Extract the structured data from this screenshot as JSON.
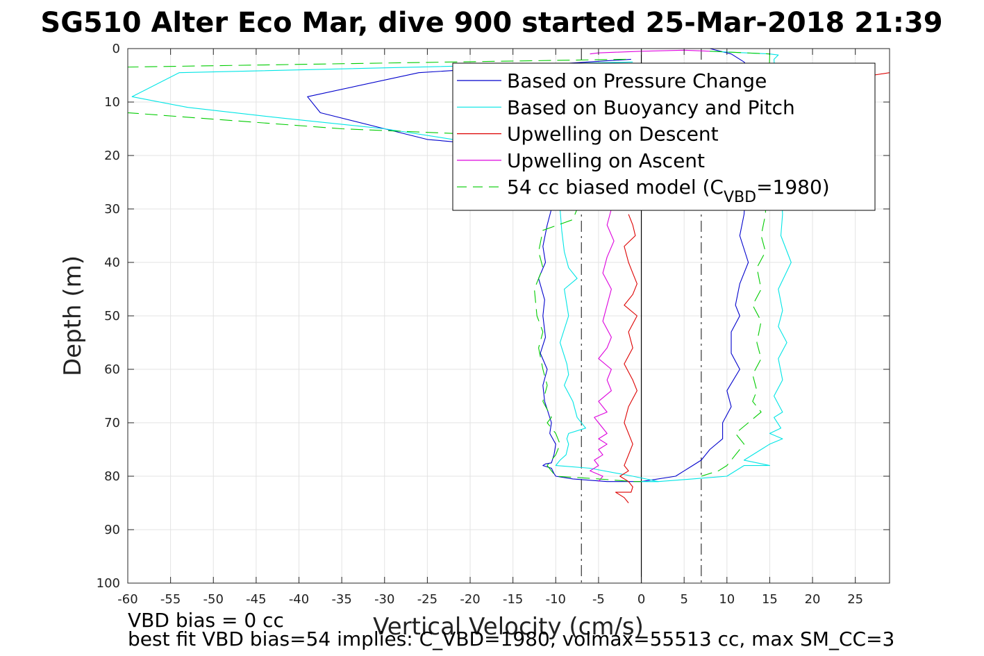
{
  "chart_data": {
    "type": "line",
    "title": "SG510 Alter Eco Mar, dive 900 started 25-Mar-2018 21:39",
    "xlabel": "Vertical Velocity (cm/s)",
    "ylabel": "Depth (m)",
    "xlim": [
      -60,
      29
    ],
    "ylim": [
      0,
      100
    ],
    "y_reversed": true,
    "grid": true,
    "xticks": [
      -60,
      -55,
      -50,
      -45,
      -40,
      -35,
      -30,
      -25,
      -20,
      -15,
      -10,
      -5,
      0,
      5,
      10,
      15,
      20,
      25
    ],
    "yticks": [
      0,
      10,
      20,
      30,
      40,
      50,
      60,
      70,
      80,
      90,
      100
    ],
    "legend_position": "top-right",
    "legend": [
      {
        "label": "Based on Pressure Change",
        "color": "#0000cc",
        "dash": "solid"
      },
      {
        "label": "Based on Buoyancy and Pitch",
        "color": "#00e5e5",
        "dash": "solid"
      },
      {
        "label": "Upwelling on Descent",
        "color": "#dd0000",
        "dash": "solid"
      },
      {
        "label": "Upwelling on Ascent",
        "color": "#dd00dd",
        "dash": "solid"
      },
      {
        "label_main": "54 cc biased model (C",
        "label_sub": "VBD",
        "label_tail": "=1980)",
        "color": "#00cc00",
        "dash": "dashed"
      }
    ],
    "reference_lines": [
      {
        "x": 0,
        "style": "solid",
        "color": "#000000"
      },
      {
        "x": -7,
        "style": "dashdot",
        "color": "#333333"
      },
      {
        "x": 7,
        "style": "dashdot",
        "color": "#333333"
      }
    ],
    "series": [
      {
        "name": "Based on Pressure Change",
        "color": "#0000cc",
        "dash": "solid",
        "segments": [
          {
            "x": [
              -1.2,
              -26,
              -39,
              -37.5,
              -25,
              -18,
              -10.5,
              -11,
              -11.5,
              -11.2,
              -12,
              -11.3,
              -11.5,
              -11.2,
              -11.8,
              -11,
              -11.5,
              -11.3,
              -10.5,
              -10.7,
              -10,
              -10.2,
              -10.5,
              -11.2,
              -11.5,
              -10.5,
              -10.2,
              -10,
              -8,
              -4,
              -1,
              0
            ],
            "y": [
              2,
              4.5,
              9,
              12,
              17,
              18,
              30,
              33,
              37,
              40,
              43,
              47,
              50,
              54,
              57,
              60,
              63,
              66,
              70,
              72,
              74,
              76,
              77.5,
              77.7,
              78,
              78.5,
              79.5,
              80,
              80.5,
              81,
              81,
              81
            ]
          },
          {
            "x": [
              8,
              10.5,
              12,
              13,
              12,
              11.5,
              12.5,
              11.5,
              11,
              11.5,
              10.5,
              10.5,
              11.5,
              10,
              10.5,
              9.5,
              9.5,
              8,
              7,
              6,
              5,
              4,
              0
            ],
            "y": [
              0,
              1,
              2.5,
              4.5,
              31,
              35,
              40,
              44,
              48,
              50,
              53,
              57,
              60,
              64,
              67,
              70,
              73,
              75,
              77,
              78,
              79,
              80,
              81
            ]
          }
        ]
      },
      {
        "name": "Based on Buoyancy and Pitch",
        "color": "#00e5e5",
        "dash": "solid",
        "segments": [
          {
            "x": [
              -1,
              -54,
              -59.5,
              -53,
              -42,
              -30,
              -22,
              -9.5,
              -9.3,
              -9,
              -8.5,
              -7.5,
              -9,
              -8.5,
              -9.5,
              -8.7,
              -8.5,
              -9,
              -8,
              -7.5,
              -6.5,
              -8.5,
              -8.7,
              -8.5,
              -8.8,
              -9.5,
              -10,
              -6,
              -1,
              2,
              0
            ],
            "y": [
              2.5,
              4.5,
              9,
              11,
              13,
              15,
              17,
              30,
              34,
              38,
              41,
              43,
              45,
              50,
              55,
              59,
              61,
              63,
              66,
              69,
              71,
              72,
              73,
              74,
              76,
              77,
              78,
              78.5,
              80,
              81,
              81
            ]
          },
          {
            "x": [
              8,
              15,
              16,
              15.5,
              16.5,
              16.3,
              17.5,
              16,
              16.5,
              16,
              17,
              16,
              16.5,
              15.5,
              16.5,
              15.5,
              16.3,
              15,
              16.5,
              15,
              14,
              12,
              15,
              12,
              10,
              6,
              2,
              0
            ],
            "y": [
              0.5,
              1,
              1.2,
              2,
              31,
              35,
              40,
              45,
              49,
              52,
              55,
              58,
              62,
              65,
              68,
              69,
              71,
              72,
              73,
              74,
              75,
              77,
              78,
              78,
              80,
              80.5,
              81,
              81
            ]
          }
        ]
      },
      {
        "name": "Upwelling on Descent",
        "color": "#dd0000",
        "dash": "solid",
        "segments": [
          {
            "x": [
              -1.5,
              -1,
              -0.7,
              -2,
              -1.5,
              -1,
              -0.5,
              -1,
              -2,
              -0.5,
              -1.5,
              -1,
              -2,
              -1,
              -0.5,
              -1.5,
              -2,
              -1.5,
              -1,
              -1.5,
              -2,
              -1.5,
              -2.5,
              -1.5,
              -1,
              -1.2,
              -2,
              -3,
              -2,
              -1.5
            ],
            "y": [
              31,
              33,
              35,
              37,
              40,
              42,
              44,
              46,
              48,
              50,
              53,
              56,
              59,
              62,
              64,
              67,
              70,
              72,
              74,
              76,
              78,
              79,
              80,
              81,
              82,
              83,
              83,
              83,
              84,
              85
            ]
          },
          {
            "x": [
              27,
              29
            ],
            "y": [
              5,
              4.5
            ]
          }
        ]
      },
      {
        "name": "Upwelling on Ascent",
        "color": "#dd00dd",
        "dash": "solid",
        "segments": [
          {
            "x": [
              -6,
              -5,
              0,
              5,
              8
            ],
            "y": [
              1,
              0.8,
              0.5,
              0.3,
              0.5
            ]
          },
          {
            "x": [
              -3.5,
              -4,
              -3.2,
              -4,
              -4.5,
              -3.5,
              -4,
              -4.5,
              -3.5,
              -4,
              -5,
              -3.5,
              -4,
              -3.5,
              -5,
              -4,
              -5.5,
              -5,
              -4,
              -5,
              -4,
              -5,
              -4.5,
              -5.5,
              -5,
              -6,
              -4.5,
              -5
            ],
            "y": [
              30,
              33,
              36,
              39,
              42,
              45,
              48,
              51,
              54,
              56,
              58,
              60,
              62,
              64,
              66,
              68,
              69,
              70,
              72,
              73,
              74,
              75,
              76,
              77,
              78,
              79,
              80,
              81
            ]
          }
        ]
      },
      {
        "name": "54 cc biased model (C_VBD=1980)",
        "color": "#00cc00",
        "dash": "dashed",
        "segments": [
          {
            "x": [
              -1.8,
              -62,
              -60,
              -35,
              -20,
              -7.5,
              -8,
              -11.5,
              -12,
              -11.5,
              -12.5,
              -12.2,
              -11.5,
              -12,
              -11.5,
              -11,
              -11.5,
              -10.5,
              -11,
              -10,
              -9.5,
              -10,
              -10.5,
              -11,
              -10.5,
              -10,
              -5,
              -1,
              0
            ],
            "y": [
              2,
              3.5,
              12,
              15,
              16,
              30,
              32,
              34,
              38,
              41,
              45,
              50,
              53,
              56,
              60,
              63,
              66,
              69,
              70,
              72,
              74,
              76,
              77,
              78,
              79,
              80,
              80.5,
              81,
              81
            ]
          },
          {
            "x": [
              8,
              15,
              14.5,
              14,
              14.5,
              13.5,
              14,
              13,
              14,
              13.5,
              14,
              13,
              13.5,
              13,
              14,
              12.5,
              11,
              12,
              11,
              10,
              9,
              7
            ],
            "y": [
              0.5,
              1,
              31,
              35,
              38,
              41,
              45,
              48,
              51,
              55,
              58,
              61,
              64,
              66,
              68,
              70,
              72,
              74,
              76,
              78,
              79,
              80
            ]
          }
        ]
      }
    ]
  },
  "footer": {
    "line1": "VBD bias = 0 cc",
    "line2": "best fit VBD bias=54 implies: C_VBD=1980, volmax=55513 cc, max SM_CC=3"
  }
}
